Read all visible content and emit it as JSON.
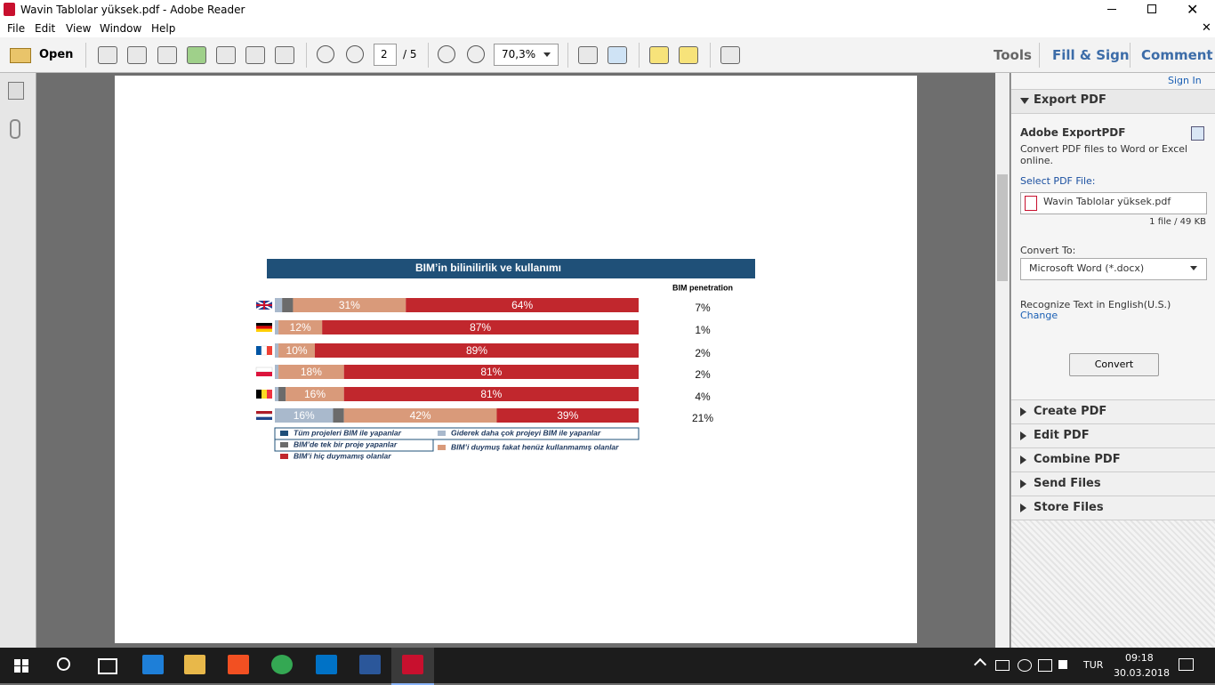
{
  "window": {
    "title": "Wavin Tablolar yüksek.pdf - Adobe Reader"
  },
  "menu": [
    "File",
    "Edit",
    "View",
    "Window",
    "Help"
  ],
  "toolbar": {
    "open": "Open",
    "page": 2,
    "page_count": "/ 5",
    "zoom": "70,3%",
    "tabs": [
      "Tools",
      "Fill & Sign",
      "Comment"
    ]
  },
  "right_panel": {
    "sign_in": "Sign In",
    "export_title": "Export PDF",
    "service": "Adobe ExportPDF",
    "description": "Convert PDF files to Word or Excel online.",
    "select_label": "Select PDF File:",
    "file_name": "Wavin Tablolar yüksek.pdf",
    "file_info": "1 file / 49 KB",
    "convert_to_label": "Convert To:",
    "convert_to": "Microsoft Word (*.docx)",
    "recognize": "Recognize Text in English(U.S.)",
    "change": "Change",
    "convert_button": "Convert",
    "sections": [
      "Create PDF",
      "Edit PDF",
      "Combine PDF",
      "Send Files",
      "Store Files"
    ]
  },
  "chart_data": {
    "type": "bar",
    "orientation": "horizontal",
    "stacked": true,
    "title": "BIM’in bilinilirlik ve kullanımı",
    "categories": [
      null,
      null,
      null,
      null,
      null,
      null
    ],
    "xlim": [
      0,
      100
    ],
    "series": [
      {
        "name": "Tüm projeleri BIM ile yapanlar",
        "color": "#1f4e79",
        "values": [
          0,
          0,
          0,
          0,
          0,
          0
        ]
      },
      {
        "name": "Giderek daha çok projeyi BIM ile yapanlar",
        "color": "#a9b9cc",
        "values": [
          2,
          1,
          1,
          1,
          1,
          16
        ],
        "value_labels": [
          null,
          null,
          null,
          null,
          null,
          "16%"
        ]
      },
      {
        "name": "BIM’de tek bir proje yapanlar",
        "color": "#6b6b6b",
        "values": [
          3,
          0,
          0,
          0,
          2,
          3
        ]
      },
      {
        "name": "BIM’i duymuş fakat henüz kullanmamış olanlar",
        "color": "#d99a7a",
        "values": [
          31,
          12,
          10,
          18,
          16,
          42
        ],
        "value_labels": [
          "31%",
          "12%",
          "10%",
          "18%",
          "16%",
          "42%"
        ]
      },
      {
        "name": "BIM’i hiç duymamış olanlar",
        "color": "#c1272d",
        "values": [
          64,
          87,
          89,
          81,
          81,
          39
        ],
        "value_labels": [
          "64%",
          "87%",
          "89%",
          "81%",
          "81%",
          "39%"
        ]
      }
    ],
    "penetration": {
      "title": "BIM penetration",
      "values": [
        7,
        1,
        2,
        2,
        4,
        21
      ],
      "value_labels": [
        "7%",
        "1%",
        "2%",
        "2%",
        "4%",
        "21%"
      ]
    }
  },
  "taskbar": {
    "language": "TUR",
    "time": "09:18",
    "date": "30.03.2018"
  }
}
